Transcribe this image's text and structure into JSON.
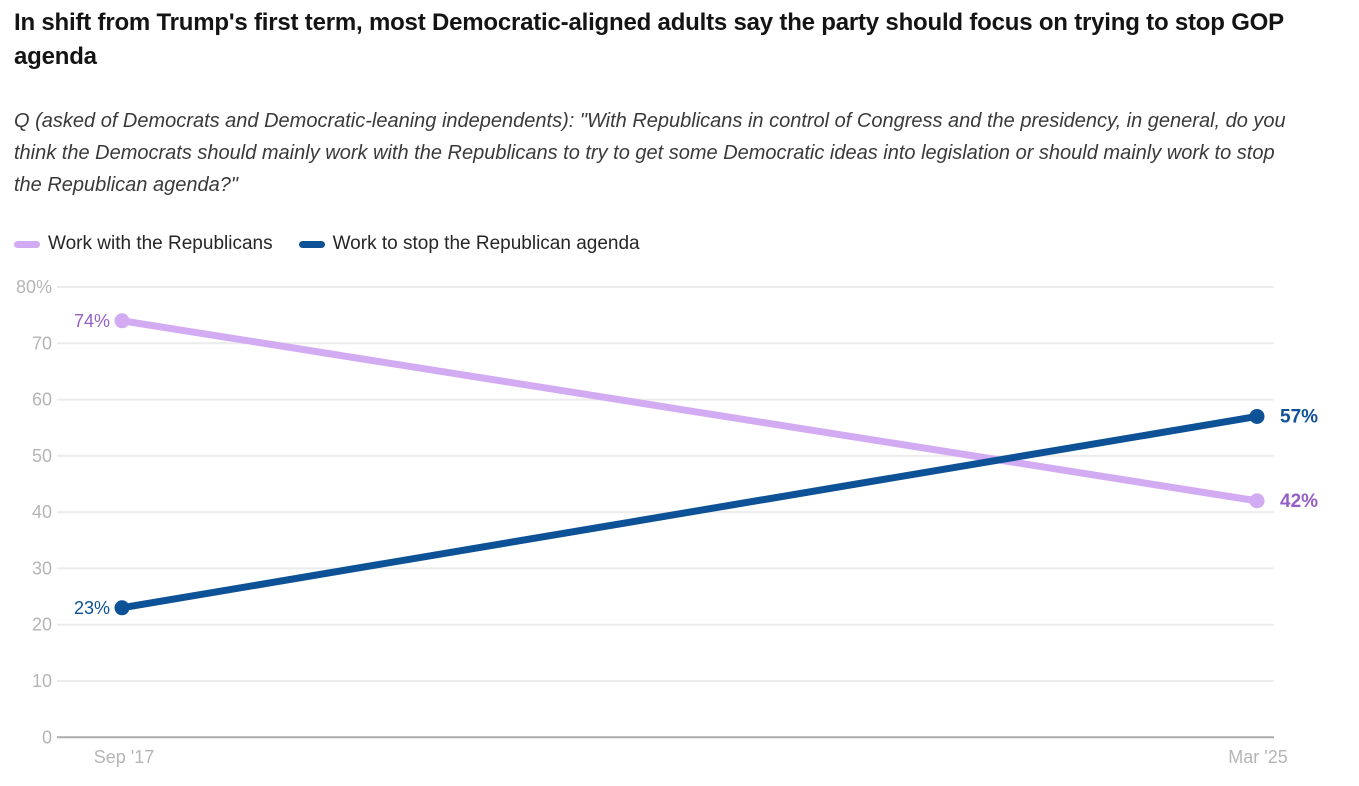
{
  "header": {
    "title": "In shift from Trump's first term, most Democratic-aligned adults say the party should focus on trying to stop GOP agenda",
    "subtitle": "Q (asked of Democrats and Democratic-leaning independents): \"With Republicans in control of Congress and the presidency, in general, do you think the Democrats should mainly work with the Republicans to try to get some Democratic ideas into legislation or should mainly work to stop the Republican agenda?\""
  },
  "legend": {
    "items": [
      {
        "label": "Work with the Republicans",
        "color": "#d2abf2"
      },
      {
        "label": "Work to stop the Republican agenda",
        "color": "#0d5296"
      }
    ]
  },
  "chart_data": {
    "type": "line",
    "title": "In shift from Trump's first term, most Democratic-aligned adults say the party should focus on trying to stop GOP agenda",
    "x": [
      "Sep '17",
      "Mar '25"
    ],
    "series": [
      {
        "name": "Work with the Republicans",
        "values": [
          74,
          42
        ],
        "color": "#d2abf2",
        "label_color": "#9460c8",
        "start_label": "74%",
        "end_label": "42%"
      },
      {
        "name": "Work to stop the Republican agenda",
        "values": [
          23,
          57
        ],
        "color": "#0d5296",
        "label_color": "#0d5296",
        "start_label": "23%",
        "end_label": "57%"
      }
    ],
    "ylim": [
      0,
      80
    ],
    "ytick_step": 10,
    "ytick_labels": [
      "0",
      "10",
      "20",
      "30",
      "40",
      "50",
      "60",
      "70",
      "80%"
    ],
    "grid": true,
    "legend_position": "top",
    "colors": {
      "gridline": "#ececec",
      "zero_line": "#ababab",
      "tick_label": "#b5b5b5"
    }
  }
}
